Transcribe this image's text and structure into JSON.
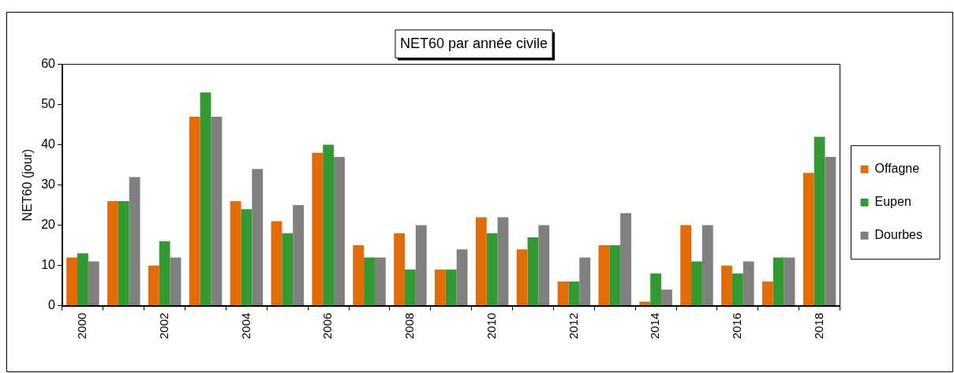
{
  "chart_data": {
    "type": "bar",
    "title": "NET60 par année civile",
    "ylabel": "NET60 (jour)",
    "categories": [
      "2000",
      null,
      "2002",
      null,
      "2004",
      null,
      "2006",
      null,
      "2008",
      null,
      "2010",
      null,
      "2012",
      null,
      "2014",
      null,
      "2016",
      null,
      "2018"
    ],
    "series": [
      {
        "name": "Offagne",
        "color": "#e36c09",
        "values": [
          12,
          26,
          10,
          47,
          26,
          21,
          38,
          15,
          18,
          9,
          22,
          14,
          6,
          15,
          1,
          20,
          10,
          6,
          33
        ]
      },
      {
        "name": "Eupen",
        "color": "#339933",
        "values": [
          13,
          26,
          16,
          53,
          24,
          18,
          40,
          12,
          9,
          9,
          18,
          17,
          6,
          15,
          8,
          11,
          8,
          12,
          42
        ]
      },
      {
        "name": "Dourbes",
        "color": "#808080",
        "values": [
          11,
          32,
          12,
          47,
          34,
          25,
          37,
          12,
          20,
          14,
          22,
          20,
          12,
          23,
          4,
          20,
          11,
          12,
          37
        ]
      }
    ],
    "ylim": [
      0,
      60
    ],
    "yticks": [
      0,
      10,
      20,
      30,
      40,
      50,
      60
    ],
    "grid": false,
    "legend": "right"
  }
}
